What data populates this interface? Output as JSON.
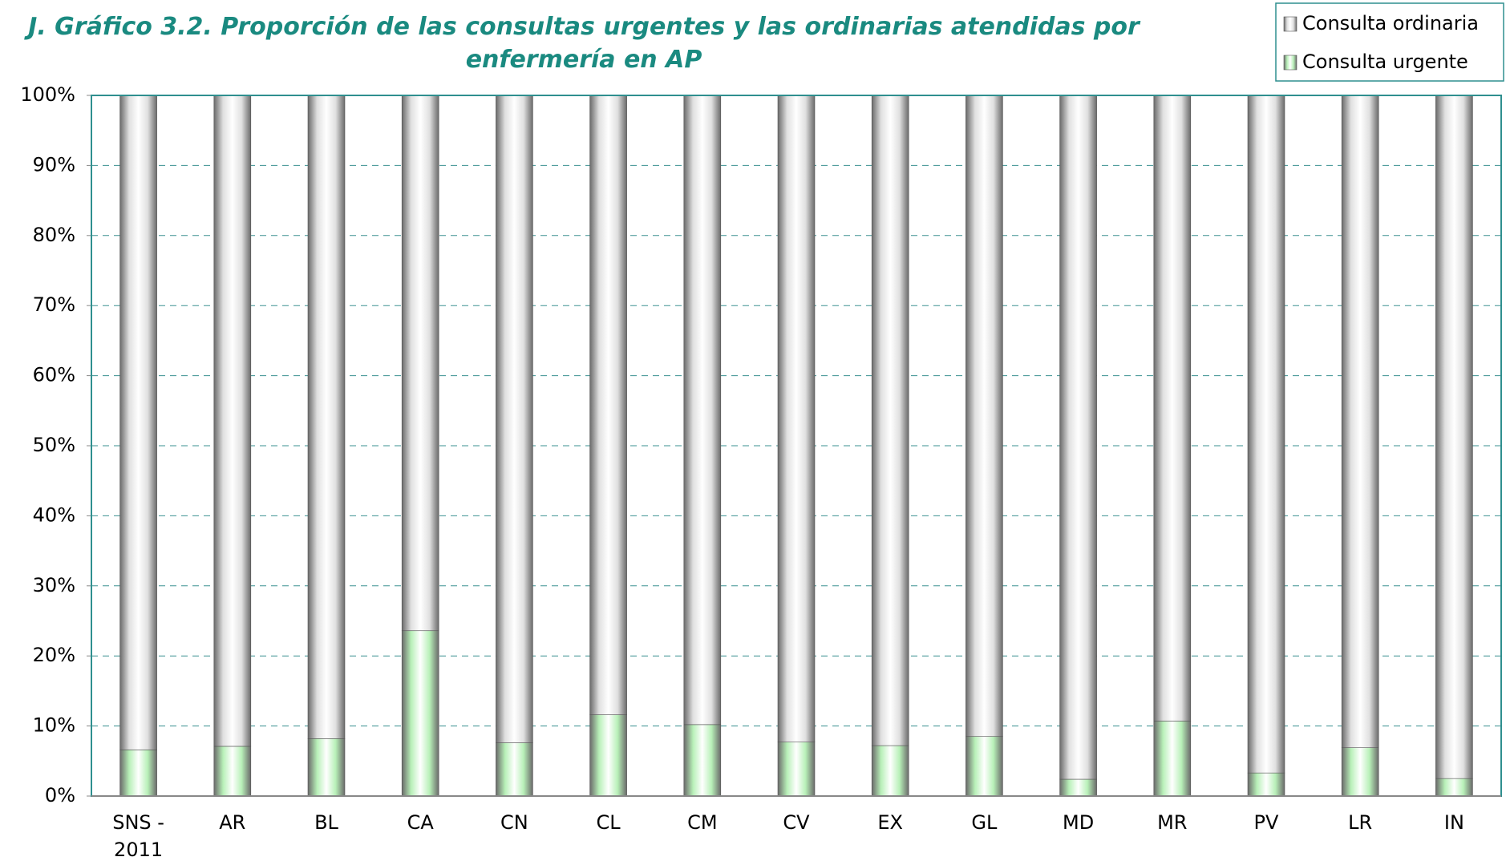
{
  "chart_data": {
    "type": "stacked_bar",
    "title": "J. Gráfico 3.2. Proporción de las consultas urgentes y las ordinarias atendidas por enfermería en AP",
    "categories": [
      "SNS - 2011",
      "AR",
      "BL",
      "CA",
      "CN",
      "CL",
      "CM",
      "CV",
      "EX",
      "GL",
      "MD",
      "MR",
      "PV",
      "LR",
      "IN"
    ],
    "series": [
      {
        "name": "Consulta urgente",
        "color": "#b8f0b8",
        "values": [
          6.6,
          7.1,
          8.2,
          23.6,
          7.6,
          11.6,
          10.2,
          7.7,
          7.2,
          8.5,
          2.4,
          10.7,
          3.3,
          6.9,
          2.5
        ]
      },
      {
        "name": "Consulta ordinaria",
        "color": "#e0e0e0",
        "values": [
          93.4,
          92.9,
          91.8,
          76.4,
          92.4,
          88.4,
          89.8,
          92.3,
          92.8,
          91.5,
          97.6,
          89.3,
          96.7,
          93.1,
          97.5
        ]
      }
    ],
    "ylim": [
      0,
      100
    ],
    "yticks": [
      {
        "value": 0,
        "label": "0%"
      },
      {
        "value": 10,
        "label": "10%"
      },
      {
        "value": 20,
        "label": "20%"
      },
      {
        "value": 30,
        "label": "30%"
      },
      {
        "value": 40,
        "label": "40%"
      },
      {
        "value": 50,
        "label": "50%"
      },
      {
        "value": 60,
        "label": "60%"
      },
      {
        "value": 70,
        "label": "70%"
      },
      {
        "value": 80,
        "label": "80%"
      },
      {
        "value": 90,
        "label": "90%"
      },
      {
        "value": 100,
        "label": "100%"
      }
    ],
    "grid": true,
    "legend": "top-right"
  }
}
